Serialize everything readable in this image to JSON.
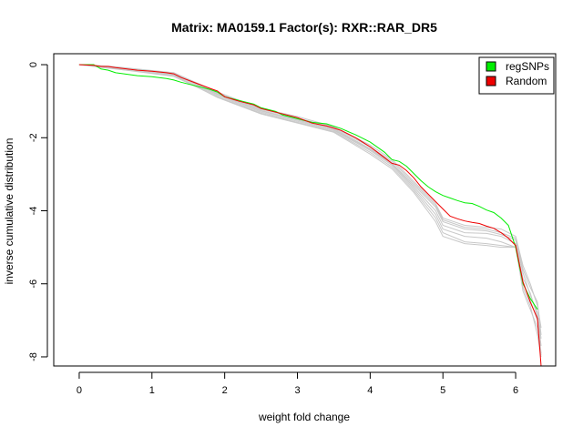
{
  "chart_data": {
    "type": "line",
    "title": "Matrix: MA0159.1 Factor(s): RXR::RAR_DR5",
    "xlabel": "weight fold change",
    "ylabel": "inverse cumulative distribution",
    "xlim": [
      -0.35,
      6.55
    ],
    "ylim": [
      -8.25,
      0.3
    ],
    "x_ticks": [
      0,
      1,
      2,
      3,
      4,
      5,
      6
    ],
    "y_ticks": [
      0,
      -2,
      -4,
      -6,
      -8
    ],
    "grid": false,
    "legend_position": "top-right",
    "colors": {
      "regSNPs": "#00ee00",
      "Random": "#ee0000",
      "background_runs": "#c8c8c8"
    },
    "series": [
      {
        "name": "regSNPs",
        "color": "#00ee00",
        "x": [
          0,
          0.2,
          0.3,
          0.4,
          0.5,
          0.8,
          1.0,
          1.2,
          1.3,
          1.4,
          1.6,
          1.8,
          1.9,
          2.0,
          2.2,
          2.4,
          2.5,
          2.7,
          2.8,
          3.0,
          3.2,
          3.4,
          3.6,
          3.8,
          4.0,
          4.2,
          4.3,
          4.4,
          4.5,
          4.6,
          4.7,
          4.8,
          4.9,
          5.0,
          5.1,
          5.2,
          5.3,
          5.4,
          5.5,
          5.6,
          5.7,
          5.8,
          5.9,
          6.0,
          6.1,
          6.2,
          6.3
        ],
        "y": [
          0,
          0,
          -0.12,
          -0.15,
          -0.22,
          -0.3,
          -0.33,
          -0.38,
          -0.42,
          -0.48,
          -0.58,
          -0.68,
          -0.75,
          -0.88,
          -0.98,
          -1.08,
          -1.18,
          -1.28,
          -1.38,
          -1.48,
          -1.58,
          -1.62,
          -1.75,
          -1.92,
          -2.12,
          -2.4,
          -2.6,
          -2.65,
          -2.78,
          -2.98,
          -3.18,
          -3.35,
          -3.48,
          -3.58,
          -3.65,
          -3.72,
          -3.78,
          -3.8,
          -3.88,
          -3.98,
          -4.05,
          -4.2,
          -4.4,
          -5.0,
          -6.0,
          -6.4,
          -6.7
        ]
      },
      {
        "name": "Random",
        "color": "#ee0000",
        "x": [
          0,
          0.2,
          0.3,
          0.4,
          0.5,
          0.8,
          1.0,
          1.2,
          1.3,
          1.4,
          1.6,
          1.8,
          1.9,
          2.0,
          2.2,
          2.4,
          2.5,
          2.7,
          2.8,
          3.0,
          3.2,
          3.4,
          3.6,
          3.8,
          4.0,
          4.2,
          4.3,
          4.4,
          4.5,
          4.6,
          4.7,
          4.8,
          4.9,
          5.0,
          5.1,
          5.2,
          5.3,
          5.4,
          5.5,
          5.6,
          5.7,
          5.8,
          5.9,
          6.0,
          6.1,
          6.2,
          6.3,
          6.35
        ],
        "y": [
          0,
          -0.02,
          -0.05,
          -0.05,
          -0.08,
          -0.15,
          -0.18,
          -0.22,
          -0.25,
          -0.35,
          -0.5,
          -0.65,
          -0.72,
          -0.88,
          -1.0,
          -1.1,
          -1.2,
          -1.3,
          -1.35,
          -1.45,
          -1.6,
          -1.68,
          -1.8,
          -2.0,
          -2.25,
          -2.55,
          -2.7,
          -2.75,
          -2.9,
          -3.1,
          -3.35,
          -3.55,
          -3.75,
          -3.95,
          -4.15,
          -4.22,
          -4.28,
          -4.32,
          -4.35,
          -4.42,
          -4.48,
          -4.6,
          -4.75,
          -4.95,
          -5.95,
          -6.5,
          -6.95,
          -8.3
        ]
      }
    ],
    "background_runs": [
      {
        "x": [
          0,
          0.4,
          1.3,
          1.9,
          2.5,
          3.0,
          3.5,
          4.0,
          4.3,
          4.6,
          4.9,
          5.0,
          5.3,
          5.6,
          5.8,
          6.0,
          6.1,
          6.2,
          6.3,
          6.35
        ],
        "y": [
          0,
          -0.05,
          -0.25,
          -0.8,
          -1.25,
          -1.5,
          -1.75,
          -2.3,
          -2.7,
          -3.3,
          -3.9,
          -4.3,
          -4.5,
          -4.55,
          -4.65,
          -4.8,
          -5.7,
          -6.3,
          -6.8,
          -7.5
        ]
      },
      {
        "x": [
          0,
          0.4,
          1.3,
          1.9,
          2.5,
          3.0,
          3.5,
          4.0,
          4.3,
          4.6,
          4.9,
          5.0,
          5.3,
          5.6,
          5.8,
          6.0,
          6.1,
          6.2,
          6.3,
          6.35
        ],
        "y": [
          0,
          -0.08,
          -0.3,
          -0.85,
          -1.3,
          -1.55,
          -1.8,
          -2.35,
          -2.75,
          -3.4,
          -4.1,
          -4.5,
          -4.7,
          -4.75,
          -4.85,
          -5.0,
          -5.95,
          -6.45,
          -7.0,
          -7.9
        ]
      },
      {
        "x": [
          0,
          0.4,
          1.3,
          1.9,
          2.5,
          3.0,
          3.5,
          4.0,
          4.3,
          4.6,
          4.9,
          5.0,
          5.3,
          5.6,
          5.8,
          6.0,
          6.1,
          6.2,
          6.3,
          6.35
        ],
        "y": [
          0,
          -0.1,
          -0.28,
          -0.9,
          -1.35,
          -1.6,
          -1.85,
          -2.45,
          -2.85,
          -3.5,
          -4.3,
          -4.7,
          -4.9,
          -4.95,
          -5.0,
          -5.0,
          -6.1,
          -6.6,
          -7.4,
          -8.0
        ]
      },
      {
        "x": [
          0,
          0.4,
          1.3,
          1.9,
          2.5,
          3.0,
          3.5,
          4.0,
          4.3,
          4.6,
          4.9,
          5.0,
          5.3,
          5.6,
          5.8,
          6.0,
          6.1,
          6.2,
          6.3,
          6.35
        ],
        "y": [
          0,
          -0.04,
          -0.22,
          -0.75,
          -1.2,
          -1.42,
          -1.7,
          -2.2,
          -2.6,
          -3.2,
          -3.8,
          -4.2,
          -4.4,
          -4.45,
          -4.5,
          -4.7,
          -5.5,
          -6.0,
          -6.6,
          -7.2
        ]
      },
      {
        "x": [
          0,
          0.4,
          1.3,
          1.9,
          2.5,
          3.0,
          3.5,
          4.0,
          4.3,
          4.6,
          4.9,
          5.0,
          5.3,
          5.6,
          5.8,
          6.0,
          6.1,
          6.2,
          6.3,
          6.35
        ],
        "y": [
          0,
          -0.06,
          -0.26,
          -0.82,
          -1.27,
          -1.52,
          -1.78,
          -2.32,
          -2.72,
          -3.35,
          -4.0,
          -4.4,
          -4.6,
          -4.62,
          -4.7,
          -4.9,
          -5.85,
          -6.25,
          -6.9,
          -7.7
        ]
      },
      {
        "x": [
          0,
          0.4,
          1.3,
          1.9,
          2.5,
          3.0,
          3.5,
          4.0,
          4.3,
          4.6,
          4.9,
          5.0,
          5.3,
          5.6,
          5.8,
          6.0,
          6.1,
          6.2,
          6.3,
          6.35
        ],
        "y": [
          0,
          -0.09,
          -0.32,
          -0.88,
          -1.33,
          -1.58,
          -1.83,
          -2.4,
          -2.8,
          -3.45,
          -4.2,
          -4.6,
          -4.85,
          -4.9,
          -4.95,
          -5.0,
          -6.2,
          -6.7,
          -7.2,
          -7.95
        ]
      },
      {
        "x": [
          0,
          0.4,
          1.3,
          1.9,
          2.5,
          3.0,
          3.5,
          4.0,
          4.3,
          4.6,
          4.9,
          5.0,
          5.3,
          5.6,
          5.8,
          6.0,
          6.1,
          6.2,
          6.3,
          6.35
        ],
        "y": [
          0,
          -0.05,
          -0.24,
          -0.78,
          -1.22,
          -1.46,
          -1.72,
          -2.25,
          -2.65,
          -3.25,
          -3.85,
          -4.25,
          -4.45,
          -4.5,
          -4.6,
          -4.75,
          -5.6,
          -6.1,
          -6.5,
          -7.4
        ]
      }
    ]
  }
}
